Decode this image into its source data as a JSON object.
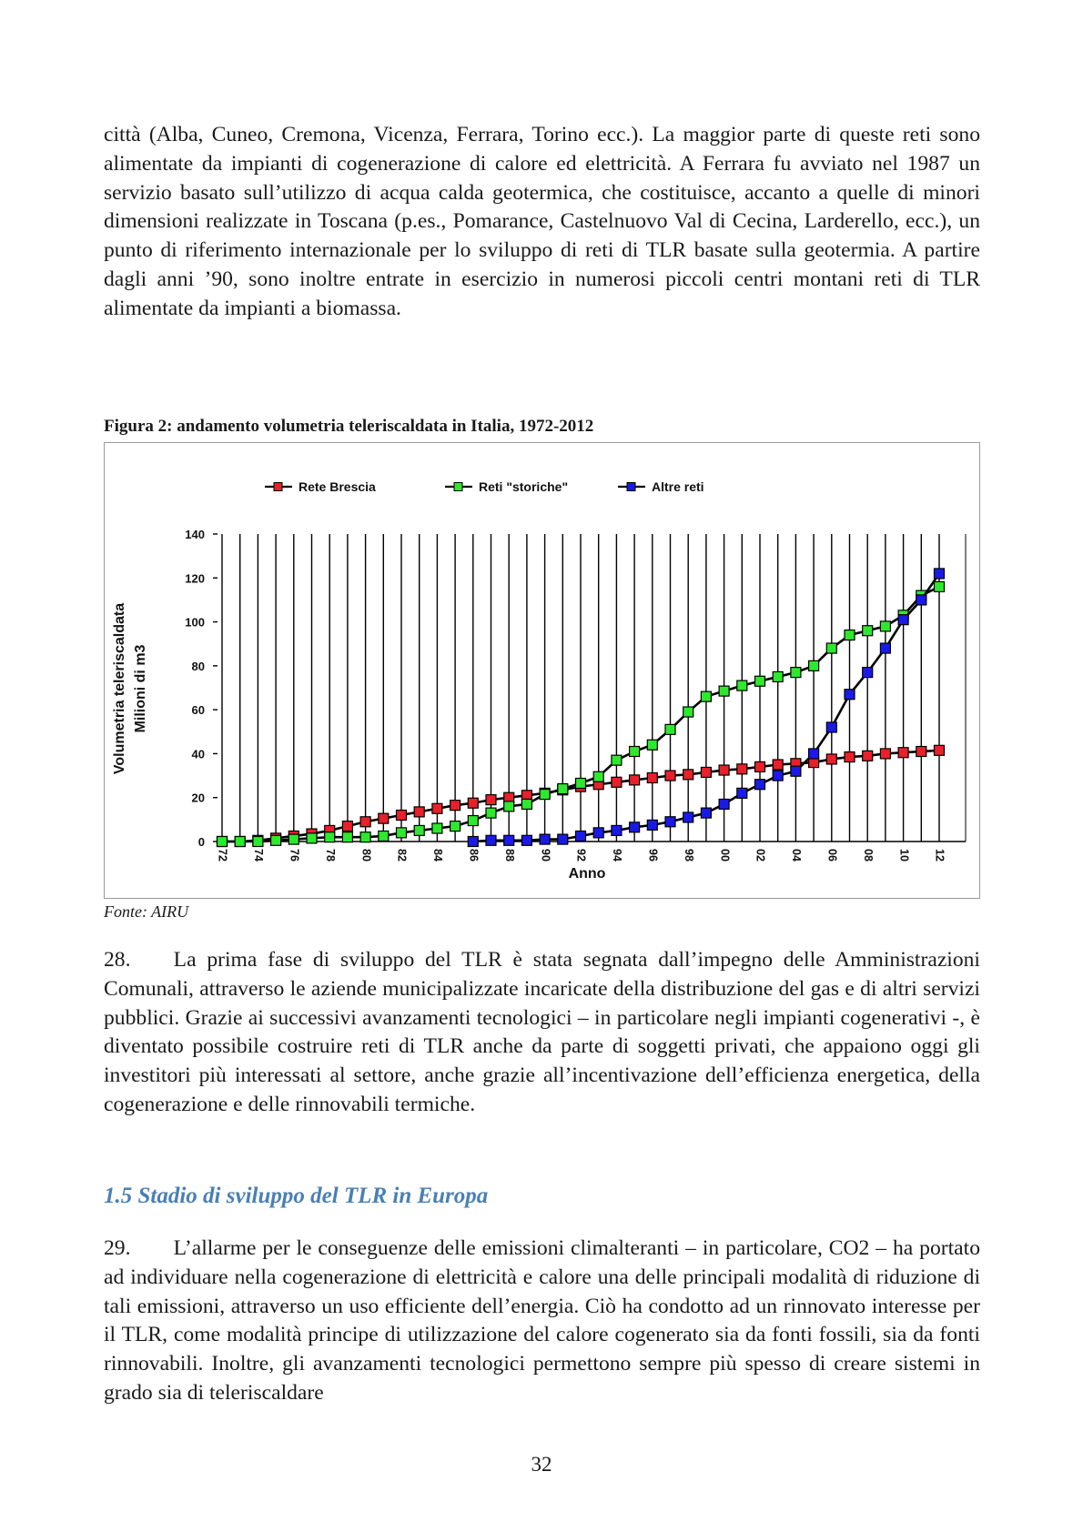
{
  "paragraphs": {
    "p1": "città (Alba, Cuneo, Cremona, Vicenza, Ferrara, Torino ecc.). La maggior parte di queste reti sono alimentate da impianti di cogenerazione di calore ed elettricità. A Ferrara fu avviato nel 1987 un servizio basato sull’utilizzo di acqua calda geotermica, che costituisce, accanto a quelle di minori dimensioni realizzate in Toscana (p.es., Pomarance, Castelnuovo Val di Cecina, Larderello, ecc.), un punto di riferimento internazionale per lo sviluppo di reti di TLR basate sulla geotermia. A partire dagli anni ’90, sono inoltre entrate in esercizio in numerosi piccoli centri montani reti di TLR alimentate da impianti a biomassa.",
    "p28": "28.  La prima fase di sviluppo del TLR è stata segnata dall’impegno delle Amministrazioni Comunali, attraverso le aziende municipalizzate incaricate della distribuzione del gas e di altri servizi pubblici. Grazie ai successivi avanzamenti tecnologici – in particolare negli impianti cogenerativi -, è diventato possibile costruire reti di TLR anche da parte di soggetti privati, che appaiono oggi gli investitori più interessati al settore, anche grazie all’incentivazione dell’efficienza energetica, della cogenerazione e delle rinnovabili termiche.",
    "p29": "29.  L’allarme per le conseguenze delle emissioni climalteranti – in particolare, CO2 – ha portato ad individuare nella cogenerazione di elettricità e calore una delle principali modalità di riduzione di tali emissioni, attraverso un uso efficiente dell’energia. Ciò ha condotto ad un rinnovato interesse per il TLR, come modalità principe di utilizzazione del calore cogenerato sia da fonti fossili, sia da fonti rinnovabili. Inoltre, gli avanzamenti tecnologici permettono sempre più spesso di creare sistemi in grado sia di teleriscaldare"
  },
  "figure": {
    "caption": "Figura 2: andamento volumetria teleriscaldata in Italia, 1972-2012",
    "source": "Fonte: AIRU"
  },
  "section_heading": "1.5 Stadio di sviluppo del TLR in Europa",
  "page_number": "32",
  "chart_data": {
    "type": "line",
    "title": "",
    "xlabel": "Anno",
    "ylabel": [
      "Volumetria teleriscaldata",
      "Milioni di m3"
    ],
    "ylim": [
      0,
      140
    ],
    "yticks": [
      0,
      20,
      40,
      60,
      80,
      100,
      120,
      140
    ],
    "xlim": [
      1972,
      2012
    ],
    "xtick_labels": [
      "72",
      "74",
      "76",
      "78",
      "80",
      "82",
      "84",
      "86",
      "88",
      "90",
      "92",
      "94",
      "96",
      "98",
      "00",
      "02",
      "04",
      "06",
      "08",
      "10",
      "12"
    ],
    "grid": "vertical",
    "legend_position": "top",
    "series": [
      {
        "name": "Rete Brescia",
        "color": "#e8202a",
        "x": [
          1972,
          1973,
          1974,
          1975,
          1976,
          1977,
          1978,
          1979,
          1980,
          1981,
          1982,
          1983,
          1984,
          1985,
          1986,
          1987,
          1988,
          1989,
          1990,
          1991,
          1992,
          1993,
          1994,
          1995,
          1996,
          1997,
          1998,
          1999,
          2000,
          2001,
          2002,
          2003,
          2004,
          2005,
          2006,
          2007,
          2008,
          2009,
          2010,
          2011,
          2012
        ],
        "values": [
          0,
          0,
          0.5,
          1.5,
          2.5,
          3.5,
          5,
          7,
          9,
          10.5,
          12,
          13.5,
          15,
          16.5,
          17.5,
          19,
          20,
          21,
          22,
          23.5,
          25,
          26,
          27,
          28,
          29,
          30,
          30.5,
          31.5,
          32.5,
          33,
          34,
          35,
          35.5,
          36,
          37.5,
          38.5,
          39,
          40,
          40.5,
          41,
          41.5
        ]
      },
      {
        "name": "Reti \"storiche\"",
        "color": "#2ee82e",
        "x": [
          1972,
          1973,
          1974,
          1975,
          1976,
          1977,
          1978,
          1979,
          1980,
          1981,
          1982,
          1983,
          1984,
          1985,
          1986,
          1987,
          1988,
          1989,
          1990,
          1991,
          1992,
          1993,
          1994,
          1995,
          1996,
          1997,
          1998,
          1999,
          2000,
          2001,
          2002,
          2003,
          2004,
          2005,
          2006,
          2007,
          2008,
          2009,
          2010,
          2011,
          2012
        ],
        "values": [
          0,
          0,
          0,
          0.5,
          1,
          1.5,
          2,
          2,
          2,
          2.5,
          4,
          5,
          6,
          7,
          9.5,
          13,
          16,
          17,
          21.5,
          24,
          26.5,
          29.5,
          37,
          41,
          44,
          51,
          59,
          66,
          68.5,
          71,
          73,
          75,
          77,
          80,
          88,
          94,
          96,
          98,
          103,
          112,
          116
        ]
      },
      {
        "name": "Altre reti",
        "color": "#1a1ae8",
        "x": [
          1986,
          1987,
          1988,
          1989,
          1990,
          1991,
          1992,
          1993,
          1994,
          1995,
          1996,
          1997,
          1998,
          1999,
          2000,
          2001,
          2002,
          2003,
          2004,
          2005,
          2006,
          2007,
          2008,
          2009,
          2010,
          2011,
          2012
        ],
        "values": [
          0,
          0.5,
          0.5,
          0.5,
          1,
          1,
          2.5,
          4,
          5,
          6.5,
          7.5,
          9,
          11,
          13,
          17,
          22,
          26,
          30,
          32,
          40,
          52,
          67,
          77,
          88,
          101,
          110,
          122
        ]
      }
    ]
  }
}
